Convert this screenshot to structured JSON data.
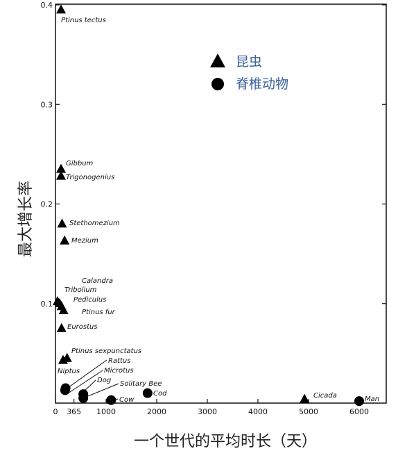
{
  "chart_data": {
    "type": "scatter",
    "xlabel": "一个世代的平均时长（天）",
    "ylabel": "最大增长率",
    "xlim": [
      0,
      6200
    ],
    "ylim": [
      0,
      0.4
    ],
    "x_ticks": [
      0,
      365,
      1000,
      2000,
      3000,
      4000,
      5000,
      6000
    ],
    "x_tick_labels": [
      "0",
      "365",
      "1000",
      "2000",
      "3000",
      "4000",
      "5000",
      "6000"
    ],
    "y_ticks": [
      0.1,
      0.2,
      0.3,
      0.4
    ],
    "y_tick_labels": [
      "0.1",
      "0.2",
      "0.3",
      "0.4"
    ],
    "legend": {
      "placement": "top-right",
      "entries": [
        {
          "label": "昆虫",
          "marker": "triangle"
        },
        {
          "label": "脊椎动物",
          "marker": "circle"
        }
      ]
    },
    "series": [
      {
        "name": "昆虫",
        "marker": "triangle",
        "points": [
          {
            "label": "Ptinus tectus",
            "x": 110,
            "y": 0.395
          },
          {
            "label": "Gibbum",
            "x": 110,
            "y": 0.235
          },
          {
            "label": "Trigonogenius",
            "x": 110,
            "y": 0.228
          },
          {
            "label": "Stethomezium",
            "x": 130,
            "y": 0.18
          },
          {
            "label": "Mezium",
            "x": 180,
            "y": 0.163
          },
          {
            "label": "Calandra",
            "x": 40,
            "y": 0.102
          },
          {
            "label": "Tribolium",
            "x": 80,
            "y": 0.1
          },
          {
            "label": "Pediculus",
            "x": 120,
            "y": 0.097
          },
          {
            "label": "Ptinus fur",
            "x": 160,
            "y": 0.093
          },
          {
            "label": "Eurostus",
            "x": 120,
            "y": 0.075
          },
          {
            "label": "Ptinus sexpunctatus",
            "x": 230,
            "y": 0.045
          },
          {
            "label": "Niptus",
            "x": 150,
            "y": 0.043
          },
          {
            "label": "Cicada",
            "x": 4920,
            "y": 0.004
          }
        ]
      },
      {
        "name": "脊椎动物",
        "marker": "circle",
        "points": [
          {
            "label": "Rattus",
            "x": 200,
            "y": 0.015
          },
          {
            "label": "Microtus",
            "x": 190,
            "y": 0.013
          },
          {
            "label": "Dog",
            "x": 550,
            "y": 0.009
          },
          {
            "label": "Solitary Bee",
            "x": 550,
            "y": 0.005
          },
          {
            "label": "Cow",
            "x": 1100,
            "y": 0.003
          },
          {
            "label": "Cod",
            "x": 1820,
            "y": 0.01
          },
          {
            "label": "Man",
            "x": 6000,
            "y": 0.002
          }
        ]
      }
    ]
  }
}
